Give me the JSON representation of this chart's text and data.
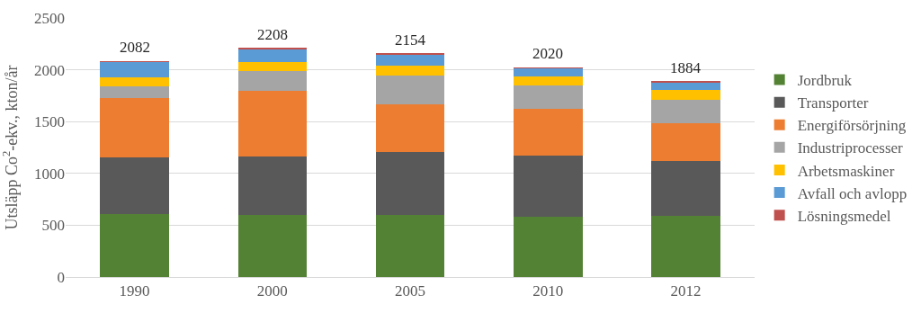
{
  "chart_data": {
    "type": "bar",
    "stacked": true,
    "ylabel": "Utsläpp Co$^{2}$-ekv., kton/år",
    "categories": [
      "1990",
      "2000",
      "2005",
      "2010",
      "2012"
    ],
    "series": [
      {
        "name": "Jordbruk",
        "color": "#548235",
        "values": [
          606,
          597,
          597,
          583,
          591
        ]
      },
      {
        "name": "Transporter",
        "color": "#595959",
        "values": [
          548,
          566,
          606,
          586,
          526
        ]
      },
      {
        "name": "Energiförsörjning",
        "color": "#ed7d31",
        "values": [
          572,
          631,
          463,
          454,
          369
        ]
      },
      {
        "name": "Industriprocesser",
        "color": "#a5a5a5",
        "values": [
          111,
          192,
          280,
          228,
          225
        ]
      },
      {
        "name": "Arbetsmaskiner",
        "color": "#ffc000",
        "values": [
          92,
          91,
          94,
          89,
          98
        ]
      },
      {
        "name": "Avfall och avlopp",
        "color": "#5b9bd5",
        "values": [
          148,
          126,
          106,
          75,
          72
        ]
      },
      {
        "name": "Lösningsmedel",
        "color": "#c0504d",
        "values": [
          5,
          5,
          8,
          5,
          3
        ]
      }
    ],
    "totals": [
      "2082",
      "2208",
      "2154",
      "2020",
      "1884"
    ],
    "ylim": [
      0,
      2500
    ],
    "yticks": [
      0,
      500,
      1000,
      1500,
      2000,
      2500
    ],
    "grid": "y",
    "legend": "right"
  }
}
